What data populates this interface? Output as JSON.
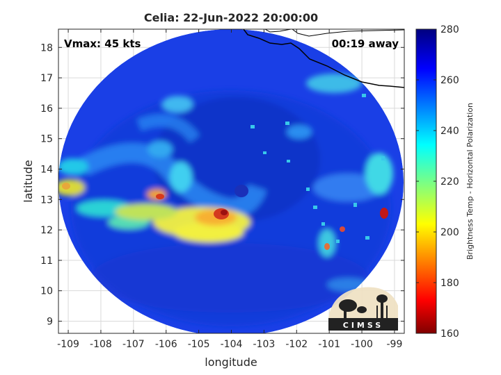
{
  "chart_data": {
    "type": "heatmap",
    "title": "Celia: 22-Jun-2022 20:00:00",
    "xlabel": "longitude",
    "ylabel": "latitude",
    "xlim": [
      -109.3,
      -98.7
    ],
    "ylim": [
      8.6,
      18.6
    ],
    "x_ticks": [
      -109,
      -108,
      -107,
      -106,
      -105,
      -104,
      -103,
      -102,
      -101,
      -100,
      -99
    ],
    "y_ticks": [
      9,
      10,
      11,
      12,
      13,
      14,
      15,
      16,
      17,
      18
    ],
    "grid": true,
    "colorbar": {
      "label": "Brightness Temp - Horizontal Polarization",
      "min": 160,
      "max": 280,
      "ticks": [
        160,
        180,
        200,
        220,
        240,
        260,
        280
      ],
      "colormap": "jet"
    },
    "swath": {
      "center_lon": -104.0,
      "center_lat": 13.4,
      "radius_deg": 5.0
    },
    "eye_center": {
      "lon": -103.5,
      "lat": 13.4
    },
    "annotations": {
      "vmax": "Vmax: 45 kts",
      "offset": "00:19 away"
    },
    "logo_text": "CIMSS"
  }
}
